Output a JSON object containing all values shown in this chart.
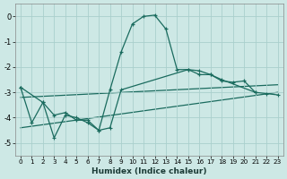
{
  "title": "",
  "xlabel": "Humidex (Indice chaleur)",
  "background_color": "#cde8e5",
  "grid_color": "#aacfcc",
  "line_color": "#1a6b5e",
  "xlim": [
    -0.5,
    23.5
  ],
  "ylim": [
    -5.5,
    0.5
  ],
  "yticks": [
    0,
    -1,
    -2,
    -3,
    -4,
    -5
  ],
  "xticks": [
    0,
    1,
    2,
    3,
    4,
    5,
    6,
    7,
    8,
    9,
    10,
    11,
    12,
    13,
    14,
    15,
    16,
    17,
    18,
    19,
    20,
    21,
    22,
    23
  ],
  "curve_main": {
    "x": [
      0,
      1,
      2,
      3,
      4,
      5,
      6,
      7,
      8,
      9,
      10,
      11,
      12,
      13,
      14,
      15,
      16,
      17,
      18,
      19,
      20,
      21,
      22,
      23
    ],
    "y": [
      -2.8,
      -4.2,
      -3.4,
      -3.9,
      -3.8,
      -4.1,
      -4.1,
      -4.5,
      -2.9,
      -1.4,
      -0.3,
      0.0,
      0.05,
      -0.5,
      -2.1,
      -2.1,
      -2.3,
      -2.3,
      -2.55,
      -2.6,
      -2.55,
      -3.0,
      null,
      null
    ]
  },
  "curve_jagged": {
    "x": [
      0,
      2,
      3,
      4,
      5,
      6,
      7,
      8,
      9,
      15,
      16,
      17,
      18,
      21,
      22,
      23
    ],
    "y": [
      -2.8,
      -3.4,
      -4.8,
      -3.9,
      -4.0,
      -4.2,
      -4.5,
      -4.4,
      -2.9,
      -2.1,
      -2.15,
      -2.3,
      -2.5,
      -3.0,
      -3.05,
      -3.1
    ]
  },
  "line1": {
    "x": [
      0,
      23
    ],
    "y": [
      -3.2,
      -2.7
    ]
  },
  "line2": {
    "x": [
      0,
      23
    ],
    "y": [
      -4.4,
      -3.0
    ]
  }
}
